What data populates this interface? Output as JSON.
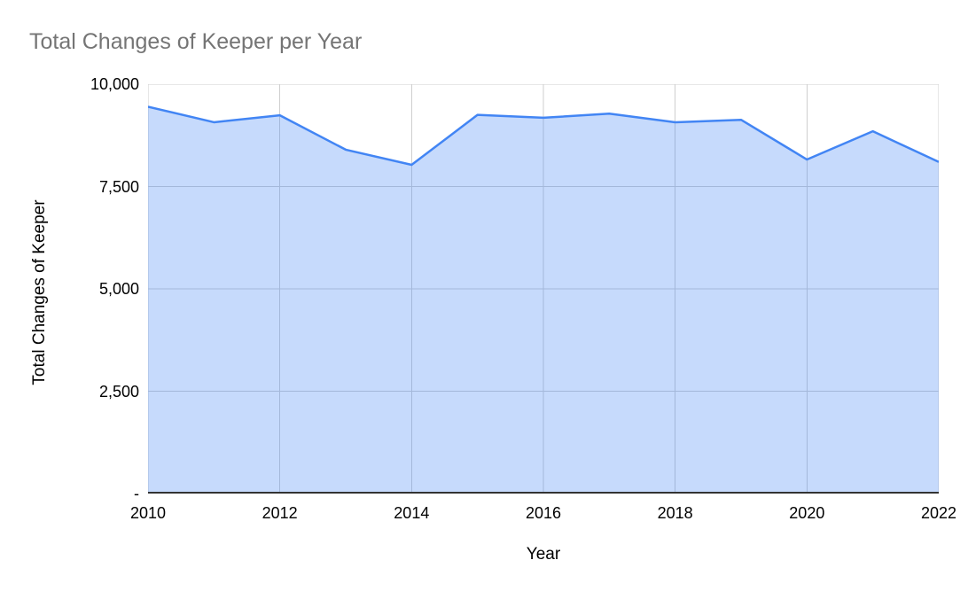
{
  "chart_data": {
    "type": "area",
    "title": "Total Changes of Keeper per Year",
    "xlabel": "Year",
    "ylabel": "Total Changes of Keeper",
    "x": [
      2010,
      2011,
      2012,
      2013,
      2014,
      2015,
      2016,
      2017,
      2018,
      2019,
      2020,
      2021,
      2022
    ],
    "series": [
      {
        "name": "Total Changes of Keeper",
        "values": [
          9450,
          9070,
          9240,
          8400,
          8030,
          9250,
          9180,
          9280,
          9070,
          9130,
          8160,
          8850,
          8100
        ]
      }
    ],
    "ylim": [
      0,
      10000
    ],
    "y_ticks": [
      {
        "value": 10000,
        "label": "10,000"
      },
      {
        "value": 7500,
        "label": "7,500"
      },
      {
        "value": 5000,
        "label": "5,000"
      },
      {
        "value": 2500,
        "label": "2,500"
      },
      {
        "value": 0,
        "label": "-"
      }
    ],
    "x_tick_step": 2,
    "grid": true,
    "legend": "none"
  },
  "colors": {
    "title_text": "#757575",
    "axis_text": "#000000",
    "gridline": "#cfcfcf",
    "axis_line": "#333333",
    "series_line": "#4285f4",
    "series_fill": "#4285f4",
    "series_fill_opacity": 0.3,
    "background": "#ffffff"
  }
}
